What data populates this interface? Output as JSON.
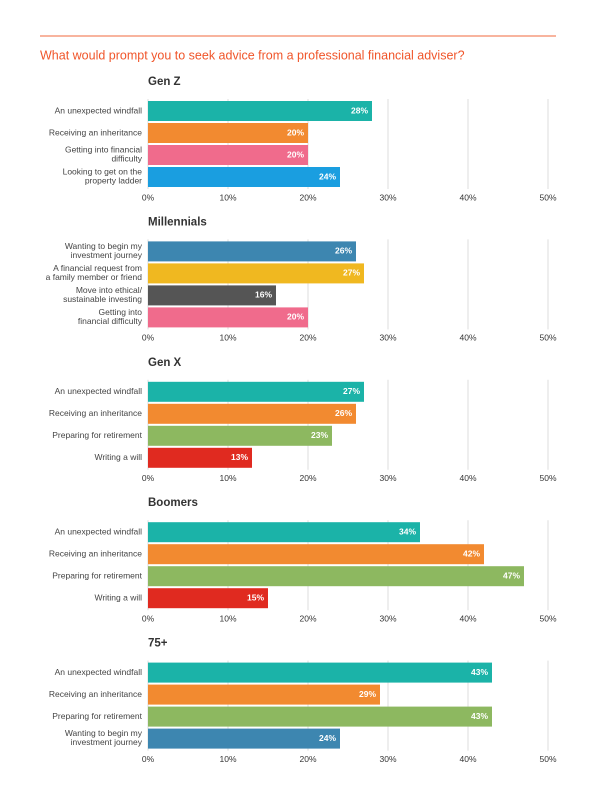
{
  "title": "What would prompt you to seek advice from a professional financial adviser?",
  "chart_data": [
    {
      "type": "bar",
      "orientation": "horizontal",
      "title": "Gen Z",
      "categories": [
        "An unexpected windfall",
        "Receiving an inheritance",
        "Getting into financial\ndifficulty",
        "Looking to get on the\nproperty ladder"
      ],
      "values": [
        28,
        20,
        20,
        24
      ],
      "value_labels": [
        "28%",
        "20%",
        "20%",
        "24%"
      ],
      "colors": [
        "#1bb3a8",
        "#f28a30",
        "#f06b8c",
        "#1a9ee0"
      ],
      "xlim": [
        0,
        50
      ],
      "xticks": [
        {
          "value": 0,
          "label": "0%"
        },
        {
          "value": 10,
          "label": "10%"
        },
        {
          "value": 20,
          "label": "20%"
        },
        {
          "value": 30,
          "label": "30%"
        },
        {
          "value": 40,
          "label": "40%"
        },
        {
          "value": 50,
          "label": "50%"
        }
      ],
      "grid": true
    },
    {
      "type": "bar",
      "orientation": "horizontal",
      "title": "Millennials",
      "categories": [
        "Wanting to begin my\ninvestment journey",
        "A financial request from\na family member or friend",
        "Move into ethical/\nsustainable investing",
        "Getting into\nfinancial difficulty"
      ],
      "values": [
        26,
        27,
        16,
        20
      ],
      "value_labels": [
        "26%",
        "27%",
        "16%",
        "20%"
      ],
      "colors": [
        "#3d86b0",
        "#f0b820",
        "#555555",
        "#f06b8c"
      ],
      "xlim": [
        0,
        50
      ],
      "xticks": [
        {
          "value": 0,
          "label": "0%"
        },
        {
          "value": 10,
          "label": "10%"
        },
        {
          "value": 20,
          "label": "20%"
        },
        {
          "value": 30,
          "label": "30%"
        },
        {
          "value": 40,
          "label": "40%"
        },
        {
          "value": 50,
          "label": "50%"
        }
      ],
      "grid": true
    },
    {
      "type": "bar",
      "orientation": "horizontal",
      "title": "Gen X",
      "categories": [
        "An unexpected windfall",
        "Receiving an inheritance",
        "Preparing for retirement",
        "Writing a will"
      ],
      "values": [
        27,
        26,
        23,
        13
      ],
      "value_labels": [
        "27%",
        "26%",
        "23%",
        "13%"
      ],
      "colors": [
        "#1bb3a8",
        "#f28a30",
        "#8db860",
        "#e02a20"
      ],
      "xlim": [
        0,
        50
      ],
      "xticks": [
        {
          "value": 0,
          "label": "0%"
        },
        {
          "value": 10,
          "label": "10%"
        },
        {
          "value": 20,
          "label": "20%"
        },
        {
          "value": 30,
          "label": "30%"
        },
        {
          "value": 40,
          "label": "40%"
        },
        {
          "value": 50,
          "label": "50%"
        }
      ],
      "grid": true
    },
    {
      "type": "bar",
      "orientation": "horizontal",
      "title": "Boomers",
      "categories": [
        "An unexpected windfall",
        "Receiving an inheritance",
        "Preparing for retirement",
        "Writing a will"
      ],
      "values": [
        34,
        42,
        47,
        15
      ],
      "value_labels": [
        "34%",
        "42%",
        "47%",
        "15%"
      ],
      "colors": [
        "#1bb3a8",
        "#f28a30",
        "#8db860",
        "#e02a20"
      ],
      "xlim": [
        0,
        50
      ],
      "xticks": [
        {
          "value": 0,
          "label": "0%"
        },
        {
          "value": 10,
          "label": "10%"
        },
        {
          "value": 20,
          "label": "20%"
        },
        {
          "value": 30,
          "label": "30%"
        },
        {
          "value": 40,
          "label": "40%"
        },
        {
          "value": 50,
          "label": "50%"
        }
      ],
      "grid": true
    },
    {
      "type": "bar",
      "orientation": "horizontal",
      "title": "75+",
      "categories": [
        "An unexpected windfall",
        "Receiving an inheritance",
        "Preparing for retirement",
        "Wanting to begin my\ninvestment journey"
      ],
      "values": [
        43,
        29,
        43,
        24
      ],
      "value_labels": [
        "43%",
        "29%",
        "43%",
        "24%"
      ],
      "colors": [
        "#1bb3a8",
        "#f28a30",
        "#8db860",
        "#3d86b0"
      ],
      "xlim": [
        0,
        50
      ],
      "xticks": [
        {
          "value": 0,
          "label": "0%"
        },
        {
          "value": 10,
          "label": "10%"
        },
        {
          "value": 20,
          "label": "20%"
        },
        {
          "value": 30,
          "label": "30%"
        },
        {
          "value": 40,
          "label": "40%"
        },
        {
          "value": 50,
          "label": "50%"
        }
      ],
      "grid": true
    }
  ]
}
